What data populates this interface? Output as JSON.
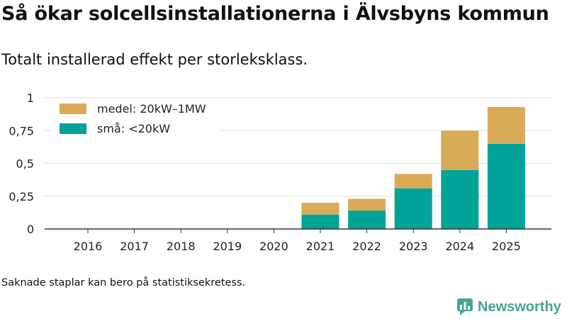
{
  "title": "Så ökar solcellsinstallationerna i Älvsbyns kommun",
  "subtitle": "Totalt installerad effekt per storleksklass.",
  "footnote": "Saknade staplar kan bero på statistiksekretess.",
  "brand": "Newsworthy",
  "colors": {
    "small": "#00a398",
    "medium": "#d9ab57",
    "grid": "#dddddd",
    "axis": "#333333",
    "brand": "#4aa39b"
  },
  "chart_data": {
    "type": "bar",
    "stacked": true,
    "categories": [
      "2016",
      "2017",
      "2018",
      "2019",
      "2020",
      "2021",
      "2022",
      "2023",
      "2024",
      "2025"
    ],
    "series": [
      {
        "name": "små: <20kW",
        "color_key": "small",
        "values": [
          0,
          0,
          0,
          0,
          0,
          0.11,
          0.14,
          0.31,
          0.45,
          0.65
        ]
      },
      {
        "name": "medel: 20kW–1MW",
        "color_key": "medium",
        "values": [
          0,
          0,
          0,
          0,
          0,
          0.09,
          0.09,
          0.11,
          0.3,
          0.28
        ]
      }
    ],
    "yticks": [
      {
        "value": 0,
        "label": "0"
      },
      {
        "value": 0.25,
        "label": "0,25"
      },
      {
        "value": 0.5,
        "label": "0,5"
      },
      {
        "value": 0.75,
        "label": "0,75"
      },
      {
        "value": 1,
        "label": "1"
      }
    ],
    "ylim": [
      0,
      1
    ],
    "grid": true,
    "legend_position": "top-left",
    "legend_order": [
      "medel: 20kW–1MW",
      "små: <20kW"
    ],
    "xlabel": "",
    "ylabel": ""
  }
}
